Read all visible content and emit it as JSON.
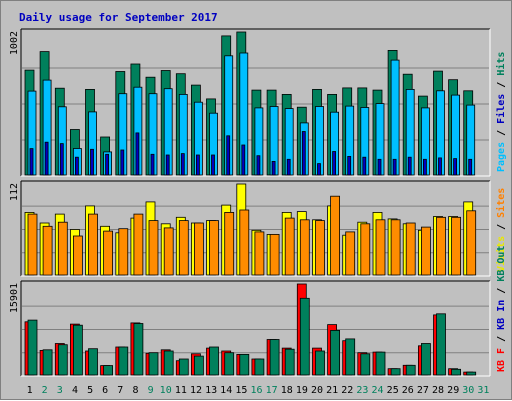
{
  "chart_data": {
    "type": "bar",
    "title": "Daily usage for September 2017",
    "categories": [
      "1",
      "2",
      "3",
      "4",
      "5",
      "6",
      "7",
      "8",
      "9",
      "10",
      "11",
      "12",
      "13",
      "14",
      "15",
      "16",
      "17",
      "18",
      "19",
      "20",
      "21",
      "22",
      "23",
      "24",
      "25",
      "26",
      "27",
      "28",
      "29",
      "30",
      "31"
    ],
    "weekend_days": [
      "2",
      "3",
      "9",
      "10",
      "16",
      "17",
      "23",
      "24",
      "30",
      "31"
    ],
    "panels": [
      {
        "id": "top",
        "ymax_label": "1002",
        "ymax": 1002,
        "right_labels": [
          {
            "text": "Pages",
            "color": "#00bfff"
          },
          {
            "text": " / ",
            "color": "#000000"
          },
          {
            "text": "Files",
            "color": "#0000c0"
          },
          {
            "text": " / ",
            "color": "#000000"
          },
          {
            "text": "Hits",
            "color": "#00805c"
          }
        ],
        "series": [
          {
            "key": "hits",
            "color": "#00805c",
            "values": [
              735,
              865,
              608,
              319,
              600,
              266,
              725,
              778,
              685,
              732,
              710,
              630,
              533,
              975,
              1002,
              595,
              595,
              565,
              475,
              600,
              565,
              610,
              610,
              595,
              873,
              706,
              553,
              728,
              668,
              590,
              0
            ]
          },
          {
            "key": "files",
            "color": "#00bfff",
            "values": [
              588,
              665,
              478,
              186,
              442,
              162,
              570,
              615,
              570,
              605,
              565,
              510,
              433,
              835,
              855,
              470,
              480,
              465,
              365,
              480,
              440,
              483,
              473,
              500,
              805,
              600,
              470,
              590,
              560,
              490,
              0
            ]
          },
          {
            "key": "pages",
            "color": "#0000c0",
            "values": [
              185,
              230,
              220,
              125,
              180,
              145,
              175,
              295,
              145,
              140,
              150,
              140,
              140,
              275,
              210,
              135,
              95,
              110,
              305,
              80,
              165,
              130,
              125,
              110,
              110,
              125,
              110,
              120,
              115,
              110,
              0
            ]
          }
        ]
      },
      {
        "id": "mid",
        "ymax_label": "112",
        "ymax": 112,
        "right_labels": [
          {
            "text": "Visits",
            "color": "#e8e800"
          },
          {
            "text": " / ",
            "color": "#000000"
          },
          {
            "text": "Sites",
            "color": "#ff8000"
          }
        ],
        "series": [
          {
            "key": "visits",
            "color": "#ffff00",
            "values": [
              77,
              64,
              75,
              56,
              85,
              60,
              52,
              70,
              90,
              63,
              71,
              64,
              67,
              86,
              112,
              55,
              50,
              77,
              78,
              68,
              85,
              49,
              65,
              77,
              69,
              63,
              55,
              72,
              72,
              90,
              0
            ]
          },
          {
            "key": "sites",
            "color": "#ff8c00",
            "values": [
              75,
              60,
              65,
              48,
              75,
              54,
              57,
              75,
              67,
              58,
              67,
              64,
              67,
              77,
              80,
              53,
              50,
              70,
              68,
              67,
              97,
              53,
              63,
              68,
              68,
              64,
              59,
              71,
              71,
              79,
              0
            ]
          }
        ]
      },
      {
        "id": "bottom",
        "ymax_label": "15901",
        "ymax": 15901,
        "right_labels": [
          {
            "text": "KB F",
            "color": "#ff0000"
          },
          {
            "text": " / ",
            "color": "#000000"
          },
          {
            "text": "KB In",
            "color": "#0000c0"
          },
          {
            "text": " / ",
            "color": "#000000"
          },
          {
            "text": "KB Out",
            "color": "#00805c"
          }
        ],
        "series": [
          {
            "key": "kbf",
            "color": "#ff0000",
            "values": [
              9300,
              4300,
              5500,
              8900,
              4200,
              1650,
              4900,
              9100,
              3800,
              4400,
              2500,
              3700,
              4700,
              4200,
              3600,
              2800,
              6200,
              4700,
              15901,
              4700,
              8800,
              6000,
              3900,
              4000,
              1100,
              1700,
              5100,
              10500,
              1100,
              500,
              0
            ]
          },
          {
            "key": "kbout",
            "color": "#00805c",
            "values": [
              9600,
              4400,
              5300,
              8700,
              4600,
              1650,
              4900,
              9000,
              3900,
              4200,
              2800,
              3300,
              4900,
              3900,
              3600,
              2800,
              6200,
              4500,
              13400,
              4200,
              7800,
              6300,
              3700,
              4000,
              1100,
              1700,
              5500,
              10700,
              1000,
              500,
              0
            ]
          }
        ]
      }
    ]
  }
}
